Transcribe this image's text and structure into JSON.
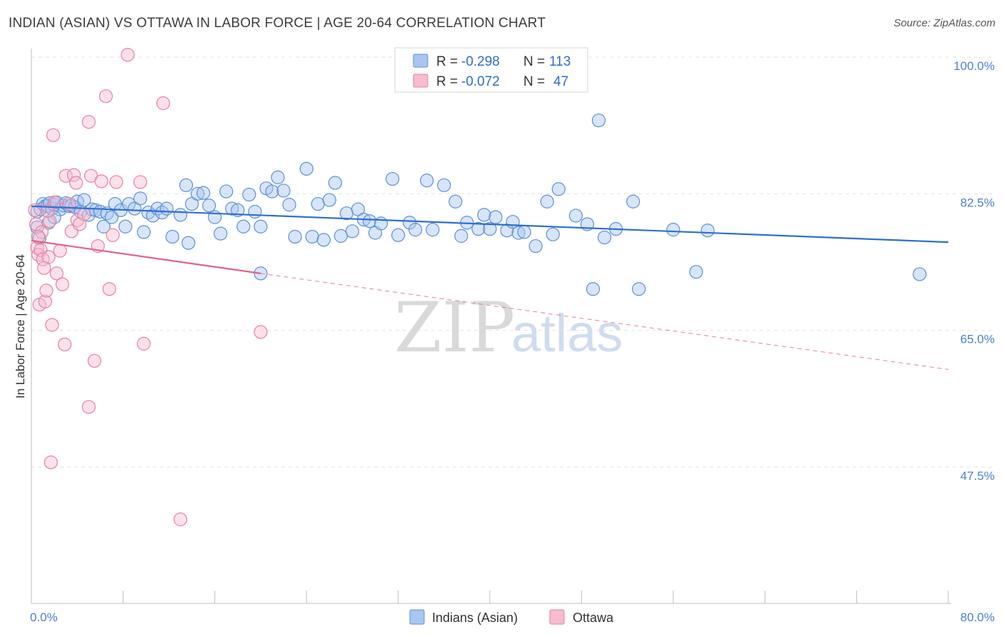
{
  "title": "INDIAN (ASIAN) VS OTTAWA IN LABOR FORCE | AGE 20-64 CORRELATION CHART",
  "source": "Source: ZipAtlas.com",
  "watermark": {
    "part1": "ZIP",
    "part2": "atlas"
  },
  "legend": {
    "rows": [
      {
        "r_label": "R =",
        "r_value": "-0.298",
        "n_label": "N =",
        "n_value": "113"
      },
      {
        "r_label": "R =",
        "r_value": "-0.072",
        "n_label": "N =",
        "n_value": "47"
      }
    ]
  },
  "bottom_legend": [
    "Indians (Asian)",
    "Ottawa"
  ],
  "colors": {
    "blue_fill": "#a9c6f0",
    "blue_stroke": "#5b8fd8",
    "blue_line": "#2f6fcf",
    "pink_fill": "#f6bcd0",
    "pink_stroke": "#e7829f",
    "pink_line": "#e0608a"
  },
  "chart_data": {
    "type": "scatter",
    "xlabel": "",
    "ylabel": "In Labor Force | Age 20-64",
    "xlim": [
      0,
      80
    ],
    "ylim": [
      33,
      102
    ],
    "x_tick_labels": [
      "0.0%",
      "80.0%"
    ],
    "y_ticks": [
      47.5,
      65.0,
      82.5,
      100.0
    ],
    "y_tick_labels": [
      "47.5%",
      "65.0%",
      "82.5%",
      "100.0%"
    ],
    "grid": true,
    "series": [
      {
        "name": "Indians (Asian)",
        "trend": {
          "x": [
            0,
            80
          ],
          "y": [
            80.9,
            76.3
          ]
        },
        "points": [
          [
            0.5,
            80.2
          ],
          [
            0.5,
            78.2
          ],
          [
            0.7,
            76.8
          ],
          [
            0.8,
            80.5
          ],
          [
            1.0,
            81.2
          ],
          [
            1.2,
            80.9
          ],
          [
            1.4,
            81.0
          ],
          [
            1.6,
            81.3
          ],
          [
            1.8,
            80.6
          ],
          [
            2.0,
            81.1
          ],
          [
            2.2,
            81.4
          ],
          [
            2.5,
            80.5
          ],
          [
            2.8,
            81.0
          ],
          [
            3.0,
            81.3
          ],
          [
            3.3,
            80.9
          ],
          [
            3.5,
            81.0
          ],
          [
            3.8,
            80.8
          ],
          [
            4.0,
            81.5
          ],
          [
            4.3,
            80.2
          ],
          [
            4.6,
            81.7
          ],
          [
            5.0,
            79.8
          ],
          [
            5.3,
            80.5
          ],
          [
            5.6,
            80.4
          ],
          [
            6.0,
            80.2
          ],
          [
            6.3,
            78.3
          ],
          [
            6.6,
            80.0
          ],
          [
            7.0,
            79.5
          ],
          [
            7.3,
            81.2
          ],
          [
            7.8,
            80.4
          ],
          [
            8.2,
            78.3
          ],
          [
            8.5,
            81.2
          ],
          [
            9.0,
            80.6
          ],
          [
            9.5,
            81.9
          ],
          [
            9.8,
            77.6
          ],
          [
            10.2,
            80.1
          ],
          [
            10.6,
            79.7
          ],
          [
            11.0,
            80.6
          ],
          [
            11.4,
            80.1
          ],
          [
            11.8,
            80.6
          ],
          [
            12.3,
            77.0
          ],
          [
            13.0,
            79.8
          ],
          [
            13.5,
            83.6
          ],
          [
            14.0,
            81.2
          ],
          [
            14.5,
            82.5
          ],
          [
            15.0,
            82.6
          ],
          [
            15.5,
            81.0
          ],
          [
            16.0,
            79.5
          ],
          [
            16.5,
            77.4
          ],
          [
            17.0,
            82.8
          ],
          [
            17.5,
            80.6
          ],
          [
            18.0,
            80.4
          ],
          [
            18.5,
            78.3
          ],
          [
            19.0,
            82.4
          ],
          [
            19.5,
            80.2
          ],
          [
            20.0,
            78.3
          ],
          [
            20.5,
            83.2
          ],
          [
            21.0,
            82.8
          ],
          [
            21.5,
            84.6
          ],
          [
            22.0,
            82.9
          ],
          [
            22.5,
            81.1
          ],
          [
            23.0,
            77.0
          ],
          [
            24.0,
            85.7
          ],
          [
            24.5,
            77.0
          ],
          [
            25.0,
            81.2
          ],
          [
            25.5,
            76.6
          ],
          [
            26.0,
            81.7
          ],
          [
            26.5,
            83.9
          ],
          [
            27.0,
            77.1
          ],
          [
            27.5,
            80.0
          ],
          [
            28.0,
            77.7
          ],
          [
            28.5,
            80.5
          ],
          [
            29.0,
            79.2
          ],
          [
            29.5,
            79.0
          ],
          [
            30.0,
            77.5
          ],
          [
            30.5,
            78.7
          ],
          [
            31.5,
            84.4
          ],
          [
            32.0,
            77.2
          ],
          [
            33.0,
            78.8
          ],
          [
            33.5,
            77.9
          ],
          [
            34.5,
            84.2
          ],
          [
            35.0,
            77.9
          ],
          [
            36.0,
            83.6
          ],
          [
            37.0,
            81.5
          ],
          [
            37.5,
            77.1
          ],
          [
            38.0,
            78.8
          ],
          [
            39.0,
            78.0
          ],
          [
            39.5,
            79.8
          ],
          [
            40.0,
            78.0
          ],
          [
            40.5,
            79.5
          ],
          [
            41.5,
            77.8
          ],
          [
            42.0,
            78.9
          ],
          [
            42.5,
            77.5
          ],
          [
            43.0,
            77.6
          ],
          [
            44.0,
            75.8
          ],
          [
            45.0,
            81.5
          ],
          [
            45.5,
            77.3
          ],
          [
            46.0,
            83.1
          ],
          [
            47.5,
            79.7
          ],
          [
            48.5,
            78.6
          ],
          [
            49.0,
            70.3
          ],
          [
            49.5,
            91.9
          ],
          [
            50.0,
            76.9
          ],
          [
            51.0,
            78.0
          ],
          [
            52.5,
            81.5
          ],
          [
            53.0,
            70.3
          ],
          [
            56.0,
            77.9
          ],
          [
            58.0,
            72.5
          ],
          [
            59.0,
            77.8
          ],
          [
            77.5,
            72.2
          ],
          [
            1.5,
            78.8
          ],
          [
            2.0,
            79.5
          ],
          [
            13.7,
            76.2
          ],
          [
            20.0,
            72.3
          ]
        ]
      },
      {
        "name": "Ottawa",
        "trend": {
          "x": [
            0,
            20
          ],
          "y": [
            76.5,
            72.3
          ]
        },
        "trend_extension": {
          "x": [
            20,
            80
          ],
          "y": [
            72.3,
            60.0
          ]
        },
        "points": [
          [
            0.3,
            80.4
          ],
          [
            0.4,
            78.6
          ],
          [
            0.5,
            75.6
          ],
          [
            0.6,
            74.7
          ],
          [
            0.7,
            68.3
          ],
          [
            0.8,
            75.3
          ],
          [
            0.9,
            77.6
          ],
          [
            1.0,
            74.1
          ],
          [
            1.1,
            73.0
          ],
          [
            1.2,
            68.7
          ],
          [
            1.3,
            70.1
          ],
          [
            1.5,
            74.4
          ],
          [
            1.6,
            79.0
          ],
          [
            1.7,
            48.1
          ],
          [
            1.8,
            65.7
          ],
          [
            1.9,
            90.0
          ],
          [
            2.0,
            81.4
          ],
          [
            2.2,
            72.3
          ],
          [
            2.5,
            75.2
          ],
          [
            2.7,
            70.9
          ],
          [
            2.9,
            63.2
          ],
          [
            3.0,
            84.8
          ],
          [
            3.3,
            81.2
          ],
          [
            3.5,
            77.7
          ],
          [
            3.7,
            84.9
          ],
          [
            3.9,
            83.9
          ],
          [
            4.0,
            79.1
          ],
          [
            4.2,
            78.6
          ],
          [
            4.6,
            79.9
          ],
          [
            5.0,
            91.7
          ],
          [
            5.0,
            55.2
          ],
          [
            5.2,
            84.8
          ],
          [
            5.5,
            61.1
          ],
          [
            5.8,
            75.8
          ],
          [
            6.1,
            84.1
          ],
          [
            6.5,
            95.0
          ],
          [
            6.8,
            70.3
          ],
          [
            7.1,
            77.2
          ],
          [
            7.4,
            84.0
          ],
          [
            8.4,
            100.3
          ],
          [
            9.5,
            84.0
          ],
          [
            9.8,
            63.3
          ],
          [
            11.5,
            94.1
          ],
          [
            13.0,
            40.8
          ],
          [
            20.0,
            64.8
          ],
          [
            0.6,
            77.0
          ],
          [
            1.4,
            80.3
          ]
        ]
      }
    ]
  }
}
